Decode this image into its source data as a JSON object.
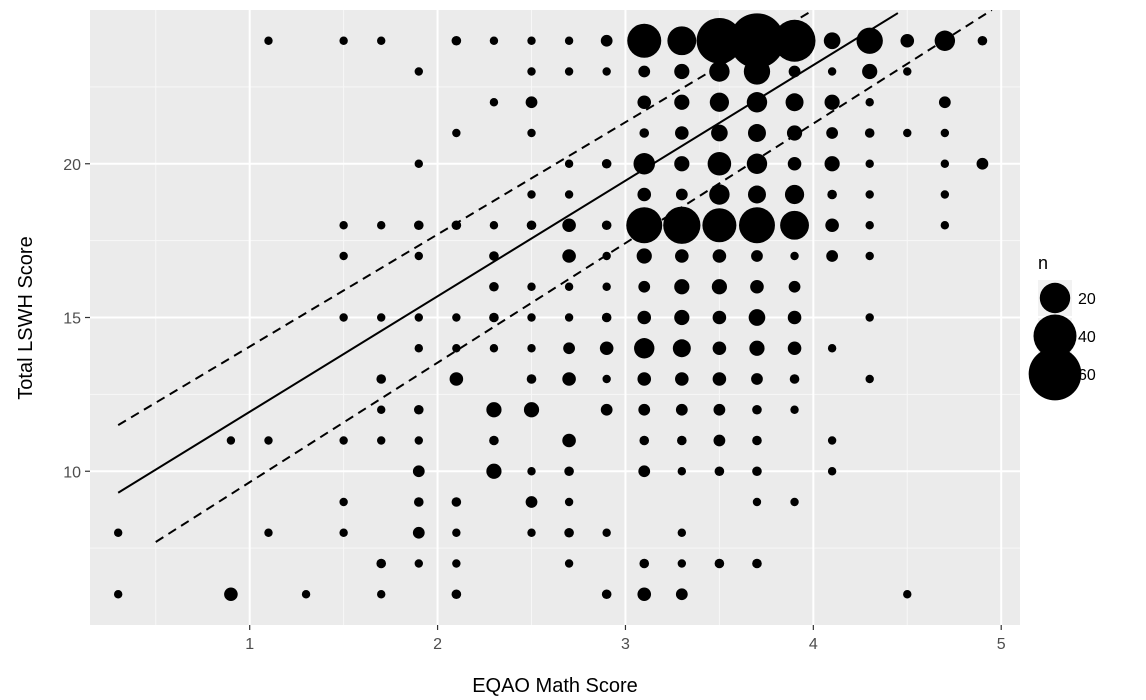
{
  "chart_data": {
    "type": "scatter",
    "xlabel": "EQAO Math Score",
    "ylabel": "Total LSWH Score",
    "xlim": [
      0.15,
      5.1
    ],
    "ylim": [
      5.0,
      25.0
    ],
    "x_ticks": [
      1,
      2,
      3,
      4,
      5
    ],
    "y_ticks": [
      10,
      15,
      20
    ],
    "grid": true,
    "legend": {
      "title": "n",
      "position": "right",
      "entries": [
        {
          "label": "20",
          "n": 20
        },
        {
          "label": "40",
          "n": 40
        },
        {
          "label": "60",
          "n": 60
        }
      ]
    },
    "fit_line": {
      "x": [
        0.3,
        4.45
      ],
      "y": [
        9.3,
        24.9
      ],
      "style": "solid"
    },
    "upper_band": {
      "x": [
        0.3,
        4.0
      ],
      "y": [
        11.5,
        25.0
      ],
      "style": "dashed"
    },
    "lower_band": {
      "x": [
        0.5,
        4.95
      ],
      "y": [
        7.7,
        25.0
      ],
      "style": "dashed"
    },
    "points": [
      [
        1.1,
        24,
        1
      ],
      [
        1.5,
        24,
        1
      ],
      [
        1.7,
        24,
        1
      ],
      [
        2.1,
        24,
        2
      ],
      [
        2.3,
        24,
        1
      ],
      [
        2.5,
        24,
        1
      ],
      [
        2.7,
        24,
        1
      ],
      [
        2.9,
        24,
        3
      ],
      [
        3.1,
        24,
        25
      ],
      [
        3.3,
        24,
        18
      ],
      [
        3.5,
        24,
        45
      ],
      [
        3.7,
        24,
        65
      ],
      [
        3.9,
        24,
        38
      ],
      [
        4.1,
        24,
        6
      ],
      [
        4.3,
        24,
        15
      ],
      [
        4.5,
        24,
        4
      ],
      [
        4.7,
        24,
        9
      ],
      [
        4.9,
        24,
        2
      ],
      [
        1.9,
        23,
        1
      ],
      [
        2.5,
        23,
        1
      ],
      [
        2.7,
        23,
        1
      ],
      [
        2.9,
        23,
        1
      ],
      [
        3.1,
        23,
        3
      ],
      [
        3.3,
        23,
        5
      ],
      [
        3.5,
        23,
        9
      ],
      [
        3.7,
        23,
        15
      ],
      [
        3.9,
        23,
        3
      ],
      [
        4.1,
        23,
        1
      ],
      [
        4.3,
        23,
        5
      ],
      [
        4.5,
        23,
        1
      ],
      [
        2.3,
        22,
        1
      ],
      [
        2.5,
        22,
        3
      ],
      [
        3.1,
        22,
        4
      ],
      [
        3.3,
        22,
        5
      ],
      [
        3.5,
        22,
        8
      ],
      [
        3.7,
        22,
        9
      ],
      [
        3.9,
        22,
        7
      ],
      [
        4.1,
        22,
        5
      ],
      [
        4.3,
        22,
        1
      ],
      [
        4.7,
        22,
        3
      ],
      [
        2.1,
        21,
        1
      ],
      [
        2.5,
        21,
        1
      ],
      [
        3.1,
        21,
        2
      ],
      [
        3.3,
        21,
        4
      ],
      [
        3.5,
        21,
        6
      ],
      [
        3.7,
        21,
        7
      ],
      [
        3.9,
        21,
        5
      ],
      [
        4.1,
        21,
        3
      ],
      [
        4.3,
        21,
        2
      ],
      [
        4.5,
        21,
        1
      ],
      [
        4.7,
        21,
        1
      ],
      [
        1.9,
        20,
        1
      ],
      [
        2.7,
        20,
        1
      ],
      [
        2.9,
        20,
        2
      ],
      [
        3.1,
        20,
        10
      ],
      [
        3.3,
        20,
        5
      ],
      [
        3.5,
        20,
        12
      ],
      [
        3.7,
        20,
        9
      ],
      [
        3.9,
        20,
        4
      ],
      [
        4.1,
        20,
        5
      ],
      [
        4.3,
        20,
        1
      ],
      [
        4.7,
        20,
        1
      ],
      [
        4.9,
        20,
        3
      ],
      [
        2.5,
        19,
        1
      ],
      [
        2.7,
        19,
        1
      ],
      [
        3.1,
        19,
        4
      ],
      [
        3.3,
        19,
        3
      ],
      [
        3.5,
        19,
        9
      ],
      [
        3.7,
        19,
        7
      ],
      [
        3.9,
        19,
        8
      ],
      [
        4.1,
        19,
        2
      ],
      [
        4.3,
        19,
        1
      ],
      [
        4.7,
        19,
        1
      ],
      [
        1.5,
        18,
        1
      ],
      [
        1.7,
        18,
        1
      ],
      [
        1.9,
        18,
        2
      ],
      [
        2.1,
        18,
        2
      ],
      [
        2.3,
        18,
        1
      ],
      [
        2.5,
        18,
        2
      ],
      [
        2.7,
        18,
        4
      ],
      [
        2.9,
        18,
        2
      ],
      [
        3.1,
        18,
        28
      ],
      [
        3.3,
        18,
        30
      ],
      [
        3.5,
        18,
        25
      ],
      [
        3.7,
        18,
        28
      ],
      [
        3.9,
        18,
        18
      ],
      [
        4.1,
        18,
        4
      ],
      [
        4.3,
        18,
        1
      ],
      [
        4.7,
        18,
        1
      ],
      [
        1.5,
        17,
        1
      ],
      [
        1.9,
        17,
        1
      ],
      [
        2.3,
        17,
        2
      ],
      [
        2.7,
        17,
        4
      ],
      [
        2.9,
        17,
        1
      ],
      [
        3.1,
        17,
        5
      ],
      [
        3.3,
        17,
        4
      ],
      [
        3.5,
        17,
        4
      ],
      [
        3.7,
        17,
        3
      ],
      [
        3.9,
        17,
        1
      ],
      [
        4.1,
        17,
        3
      ],
      [
        4.3,
        17,
        1
      ],
      [
        2.3,
        16,
        2
      ],
      [
        2.5,
        16,
        1
      ],
      [
        2.7,
        16,
        1
      ],
      [
        2.9,
        16,
        1
      ],
      [
        3.1,
        16,
        3
      ],
      [
        3.3,
        16,
        5
      ],
      [
        3.5,
        16,
        5
      ],
      [
        3.7,
        16,
        4
      ],
      [
        3.9,
        16,
        3
      ],
      [
        1.5,
        15,
        1
      ],
      [
        1.7,
        15,
        1
      ],
      [
        1.9,
        15,
        1
      ],
      [
        2.1,
        15,
        1
      ],
      [
        2.3,
        15,
        2
      ],
      [
        2.5,
        15,
        1
      ],
      [
        2.7,
        15,
        1
      ],
      [
        2.9,
        15,
        2
      ],
      [
        3.1,
        15,
        4
      ],
      [
        3.3,
        15,
        5
      ],
      [
        3.5,
        15,
        4
      ],
      [
        3.7,
        15,
        6
      ],
      [
        3.9,
        15,
        4
      ],
      [
        4.3,
        15,
        1
      ],
      [
        1.9,
        14,
        1
      ],
      [
        2.1,
        14,
        1
      ],
      [
        2.3,
        14,
        1
      ],
      [
        2.5,
        14,
        1
      ],
      [
        2.7,
        14,
        3
      ],
      [
        2.9,
        14,
        4
      ],
      [
        3.1,
        14,
        9
      ],
      [
        3.3,
        14,
        7
      ],
      [
        3.5,
        14,
        4
      ],
      [
        3.7,
        14,
        5
      ],
      [
        3.9,
        14,
        4
      ],
      [
        4.1,
        14,
        1
      ],
      [
        1.7,
        13,
        2
      ],
      [
        2.1,
        13,
        4
      ],
      [
        2.5,
        13,
        2
      ],
      [
        2.7,
        13,
        4
      ],
      [
        2.9,
        13,
        1
      ],
      [
        3.1,
        13,
        4
      ],
      [
        3.3,
        13,
        4
      ],
      [
        3.5,
        13,
        4
      ],
      [
        3.7,
        13,
        3
      ],
      [
        3.9,
        13,
        2
      ],
      [
        4.3,
        13,
        1
      ],
      [
        1.7,
        12,
        1
      ],
      [
        1.9,
        12,
        2
      ],
      [
        2.3,
        12,
        5
      ],
      [
        2.5,
        12,
        5
      ],
      [
        2.9,
        12,
        3
      ],
      [
        3.1,
        12,
        3
      ],
      [
        3.3,
        12,
        3
      ],
      [
        3.5,
        12,
        3
      ],
      [
        3.7,
        12,
        2
      ],
      [
        3.9,
        12,
        1
      ],
      [
        0.9,
        11,
        1
      ],
      [
        1.1,
        11,
        1
      ],
      [
        1.5,
        11,
        1
      ],
      [
        1.7,
        11,
        1
      ],
      [
        1.9,
        11,
        1
      ],
      [
        2.3,
        11,
        2
      ],
      [
        2.7,
        11,
        4
      ],
      [
        3.1,
        11,
        2
      ],
      [
        3.3,
        11,
        2
      ],
      [
        3.5,
        11,
        3
      ],
      [
        3.7,
        11,
        2
      ],
      [
        4.1,
        11,
        1
      ],
      [
        1.9,
        10,
        3
      ],
      [
        2.3,
        10,
        5
      ],
      [
        2.5,
        10,
        1
      ],
      [
        2.7,
        10,
        2
      ],
      [
        3.1,
        10,
        3
      ],
      [
        3.3,
        10,
        1
      ],
      [
        3.5,
        10,
        2
      ],
      [
        3.7,
        10,
        2
      ],
      [
        4.1,
        10,
        1
      ],
      [
        1.5,
        9,
        1
      ],
      [
        1.9,
        9,
        2
      ],
      [
        2.1,
        9,
        2
      ],
      [
        2.5,
        9,
        3
      ],
      [
        2.7,
        9,
        1
      ],
      [
        3.7,
        9,
        1
      ],
      [
        3.9,
        9,
        1
      ],
      [
        0.3,
        8,
        1
      ],
      [
        1.1,
        8,
        1
      ],
      [
        1.5,
        8,
        1
      ],
      [
        1.9,
        8,
        3
      ],
      [
        2.1,
        8,
        1
      ],
      [
        2.5,
        8,
        1
      ],
      [
        2.7,
        8,
        2
      ],
      [
        2.9,
        8,
        1
      ],
      [
        3.3,
        8,
        1
      ],
      [
        1.7,
        7,
        2
      ],
      [
        1.9,
        7,
        1
      ],
      [
        2.1,
        7,
        1
      ],
      [
        2.7,
        7,
        1
      ],
      [
        3.1,
        7,
        2
      ],
      [
        3.3,
        7,
        1
      ],
      [
        3.5,
        7,
        2
      ],
      [
        3.7,
        7,
        2
      ],
      [
        0.3,
        6,
        1
      ],
      [
        0.9,
        6,
        4
      ],
      [
        1.3,
        6,
        1
      ],
      [
        1.7,
        6,
        1
      ],
      [
        2.1,
        6,
        2
      ],
      [
        2.9,
        6,
        2
      ],
      [
        3.1,
        6,
        4
      ],
      [
        3.3,
        6,
        3
      ],
      [
        4.5,
        6,
        1
      ]
    ]
  }
}
